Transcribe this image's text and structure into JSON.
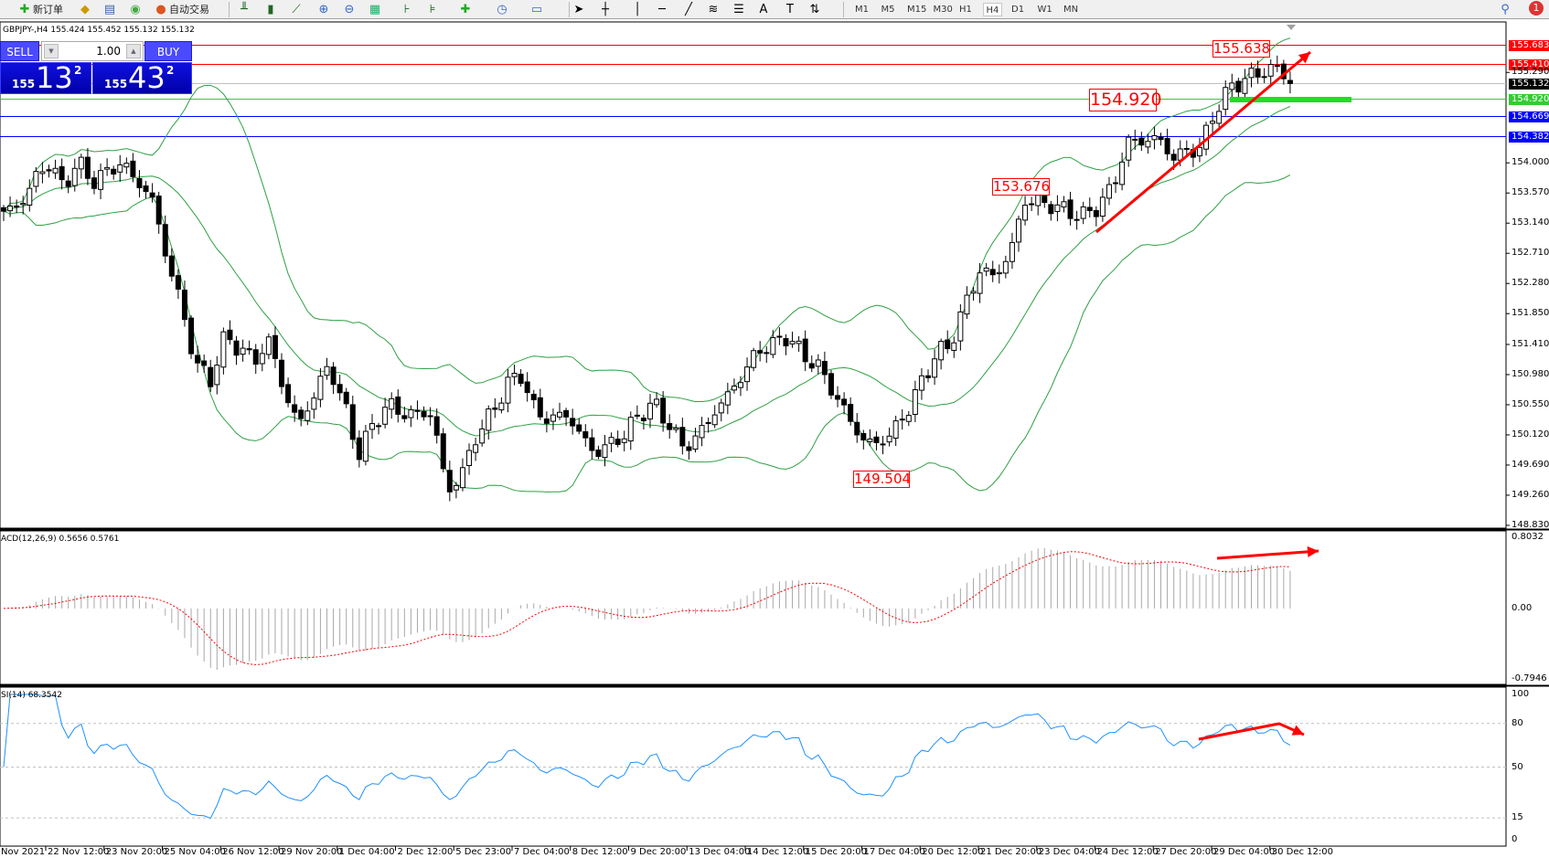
{
  "toolbar": {
    "new_order": "新订单",
    "auto_trading": "自动交易",
    "timeframes": [
      "M1",
      "M5",
      "M15",
      "M30",
      "H1",
      "H4",
      "D1",
      "W1",
      "MN"
    ],
    "selected_timeframe": "H4",
    "notification_count": "1"
  },
  "chart_info": {
    "header": "GBPJPY-,H4  155.424 155.452 155.132 155.132"
  },
  "trade_panel": {
    "sell_label": "SELL",
    "buy_label": "BUY",
    "lot": "1.00",
    "sell_prefix": "155",
    "sell_big": "13",
    "sell_point": "2",
    "buy_prefix": "155",
    "buy_big": "43",
    "buy_point": "2"
  },
  "price_axis": {
    "ticks": [
      "155.290",
      "154.000",
      "153.570",
      "153.140",
      "152.710",
      "152.280",
      "151.850",
      "151.410",
      "150.980",
      "150.550",
      "150.120",
      "149.690",
      "149.260",
      "148.830"
    ],
    "lines": [
      {
        "label": "155.683",
        "color": "#ff0000"
      },
      {
        "label": "155.410",
        "color": "#ff0000"
      },
      {
        "label": "155.132",
        "color": "#000000",
        "line": "#c0c0c0"
      },
      {
        "label": "154.920",
        "color": "#33cc33"
      },
      {
        "label": "154.669",
        "color": "#0000ff"
      },
      {
        "label": "154.382",
        "color": "#0000ff"
      }
    ]
  },
  "annotations": [
    "155.638",
    "154.920",
    "153.676",
    "149.504"
  ],
  "time_axis": [
    "Nov 2021",
    "22 Nov 12:00",
    "23 Nov 20:00",
    "25 Nov 04:00",
    "26 Nov 12:00",
    "29 Nov 20:00",
    "1 Dec 04:00",
    "2 Dec 12:00",
    "5 Dec 23:00",
    "7 Dec 04:00",
    "8 Dec 12:00",
    "9 Dec 20:00",
    "13 Dec 04:00",
    "14 Dec 12:00",
    "15 Dec 20:00",
    "17 Dec 04:00",
    "20 Dec 12:00",
    "21 Dec 20:00",
    "23 Dec 04:00",
    "24 Dec 12:00",
    "27 Dec 20:00",
    "29 Dec 04:00",
    "30 Dec 12:00"
  ],
  "macd": {
    "label": "ACD(12,26,9) 0.5656 0.5761",
    "axis": [
      "0.8032",
      "0.00",
      "-0.7946"
    ]
  },
  "rsi": {
    "label": "SI(14) 68.3542",
    "axis": [
      "100",
      "80",
      "50",
      "15",
      "0"
    ]
  },
  "colors": {
    "bands": "#2ea043",
    "macd_hist": "#a8a8a8",
    "macd_signal": "#ff0000",
    "rsi": "#1e90ff",
    "annotation": "#ff0000"
  },
  "chart_data": {
    "type": "candlestick",
    "symbol": "GBPJPY-",
    "timeframe": "H4",
    "ylim": [
      148.79,
      156.01
    ],
    "close": [
      153.31,
      153.38,
      153.73,
      154.01,
      153.66,
      154.01,
      153.73,
      153.87,
      154.01,
      153.73,
      153.52,
      152.67,
      151.97,
      151.12,
      150.91,
      151.54,
      151.33,
      151.19,
      151.47,
      150.7,
      150.27,
      150.7,
      151.12,
      150.56,
      149.85,
      150.27,
      150.56,
      150.42,
      150.42,
      150.42,
      149.29,
      149.57,
      150.13,
      150.42,
      150.84,
      150.98,
      150.42,
      150.35,
      150.42,
      150.13,
      149.85,
      149.99,
      150.13,
      150.42,
      150.56,
      150.27,
      149.92,
      150.13,
      150.42,
      150.7,
      150.98,
      151.33,
      151.4,
      151.54,
      151.26,
      151.12,
      150.77,
      150.42,
      150.06,
      149.99,
      150.13,
      150.42,
      150.84,
      151.26,
      151.4,
      151.97,
      152.46,
      152.39,
      152.67,
      153.45,
      153.45,
      153.38,
      153.31,
      153.24,
      153.38,
      153.66,
      154.3,
      154.3,
      154.37,
      154.08,
      154.16,
      154.23,
      154.79,
      155.07,
      155.21,
      155.28,
      155.38,
      155.132
    ],
    "indicators": [
      "Bollinger Bands(20,2)",
      "MACD(12,26,9)",
      "RSI(14)"
    ],
    "macd_ylim": [
      -0.7946,
      0.8032
    ],
    "rsi_levels": [
      80,
      50,
      15
    ]
  }
}
